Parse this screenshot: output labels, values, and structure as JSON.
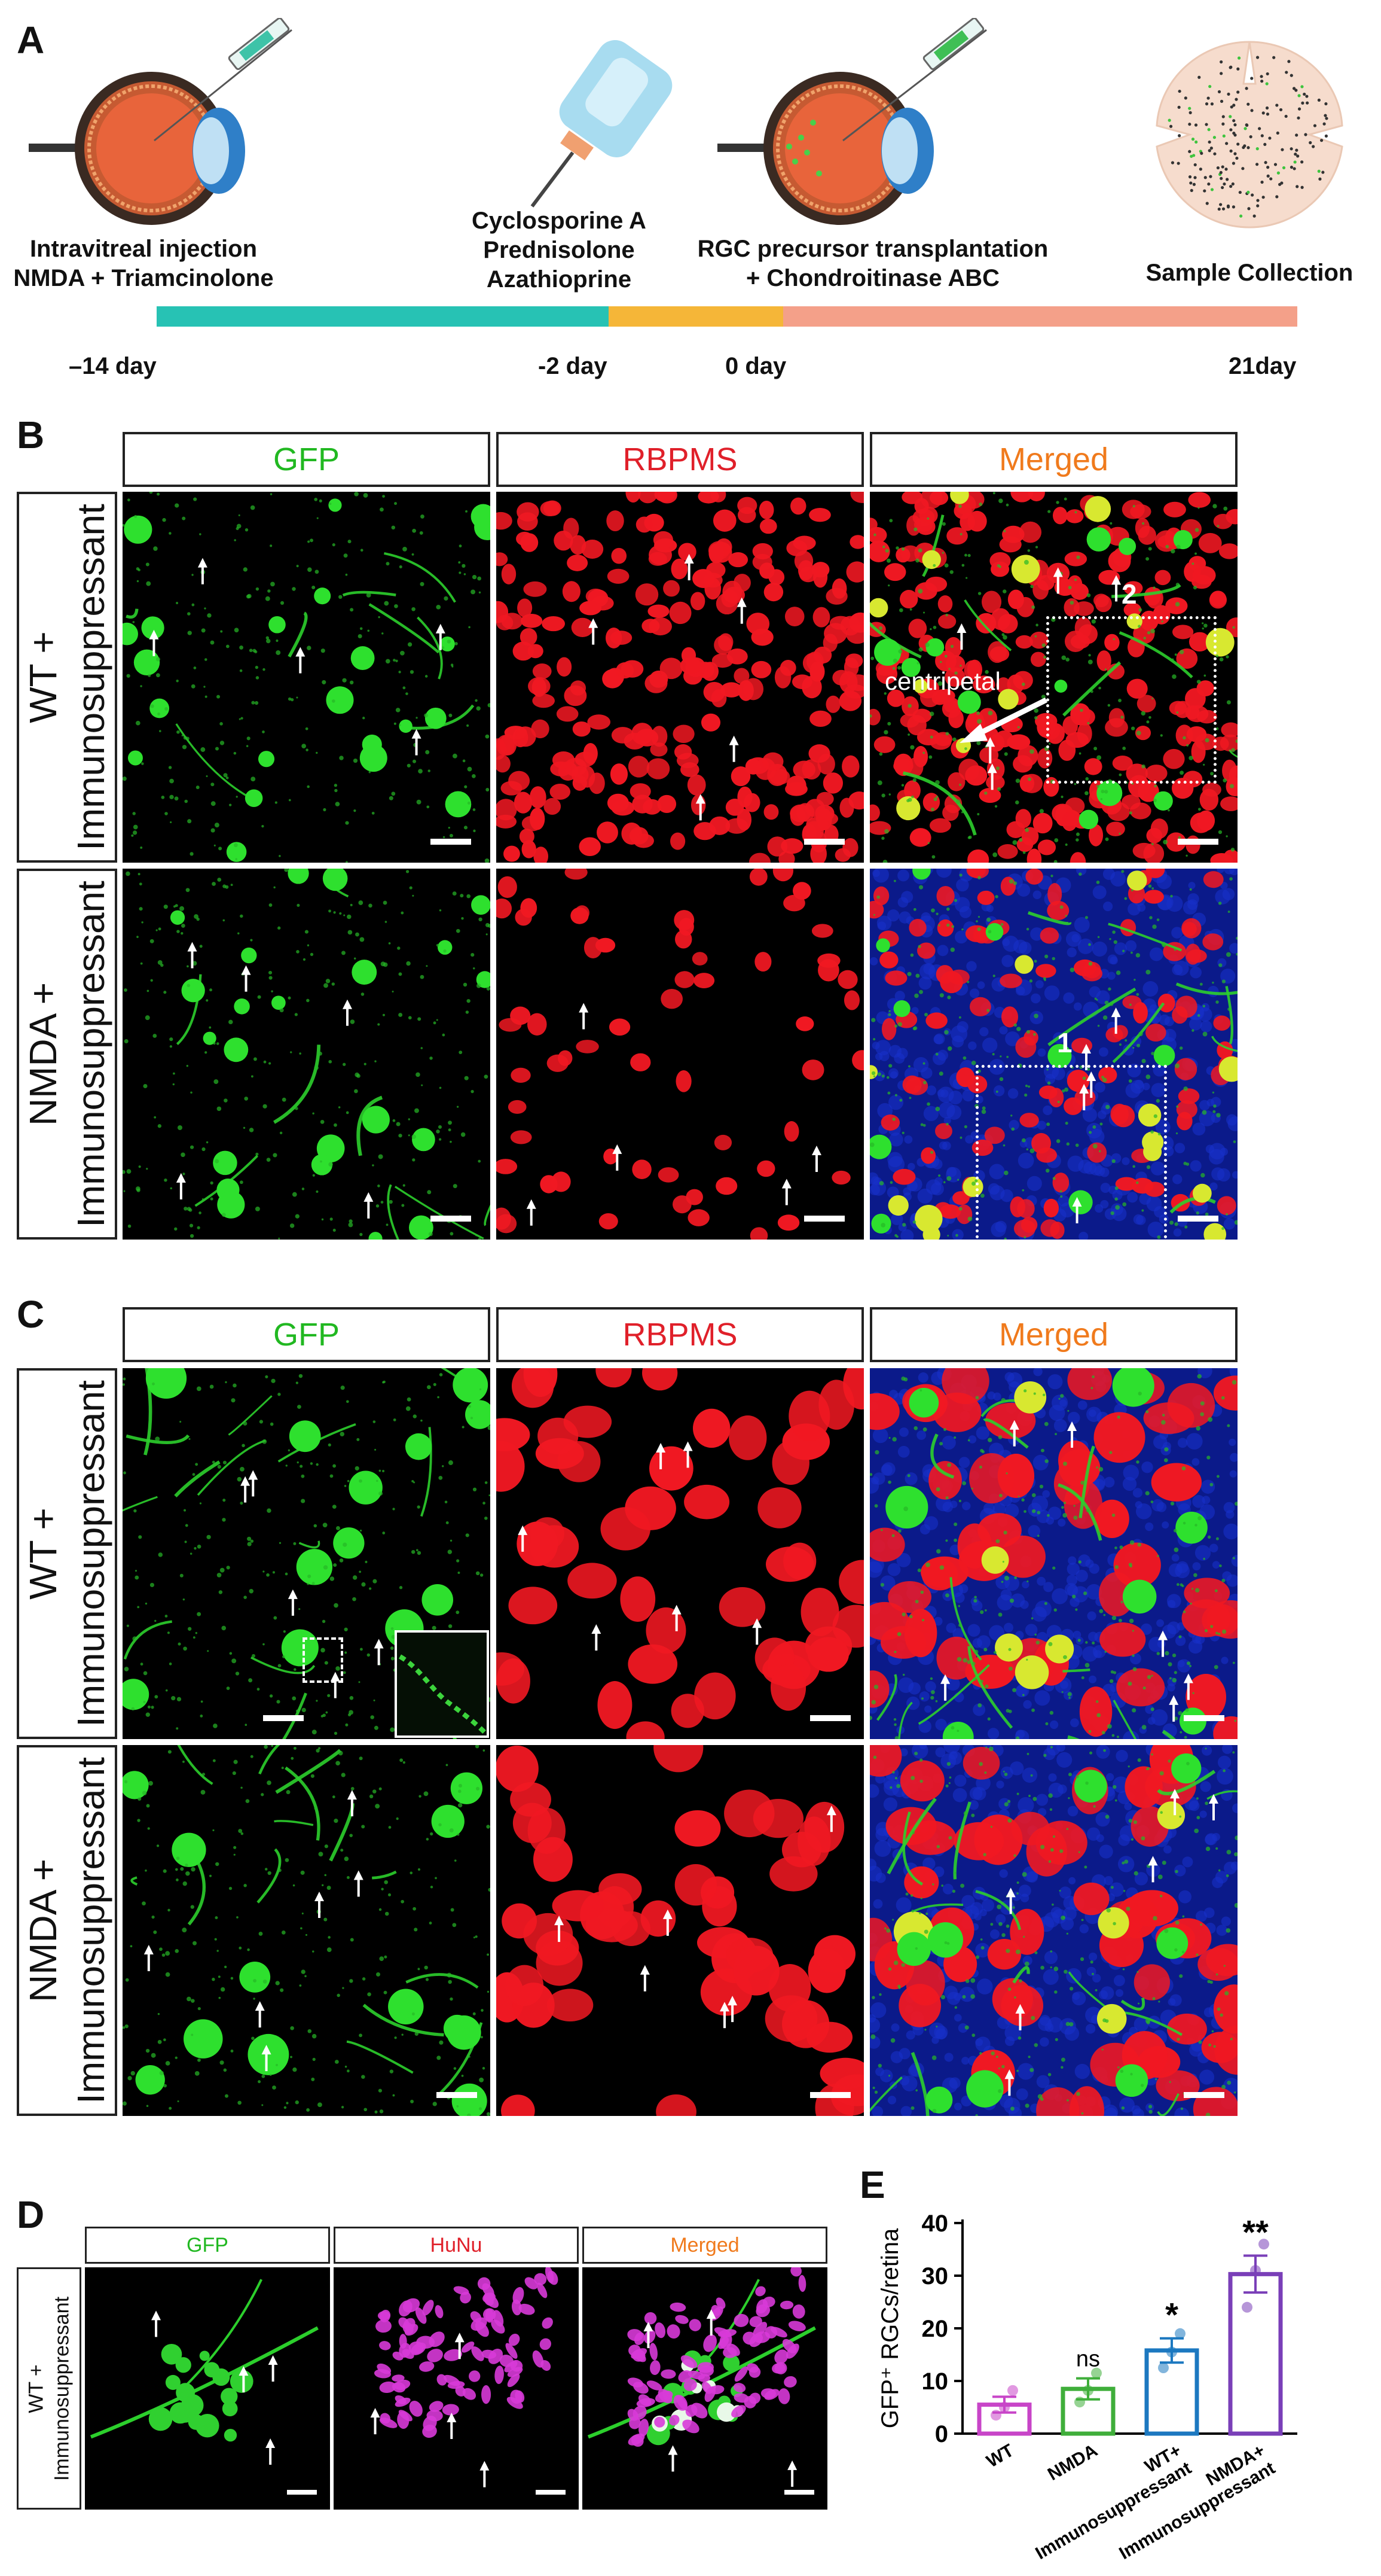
{
  "panel_a": {
    "label": "A",
    "step1": {
      "line1": "Intravitreal injection",
      "line2": "NMDA + Triamcinolone"
    },
    "step2": {
      "line1": "Cyclosporine A",
      "line2": "Prednisolone",
      "line3": "Azathioprine"
    },
    "step3": {
      "line1": "RGC precursor transplantation",
      "line2": "+ Chondroitinase ABC"
    },
    "step4": {
      "line1": "Sample Collection"
    },
    "timeline": {
      "t1": "–14 day",
      "t2": "-2 day",
      "t3": "0 day",
      "t4": "21day"
    },
    "colors": {
      "seg1": "#27c2b4",
      "seg2": "#f5b638",
      "seg3": "#f4a089"
    }
  },
  "panel_b": {
    "label": "B",
    "col_gfp": "GFP",
    "col_rbpms": "RBPMS",
    "col_merged": "Merged",
    "row1": {
      "line1": "WT +",
      "line2": "Immunosuppressant"
    },
    "row2": {
      "line1": "NMDA +",
      "line2": "Immunosuppressant"
    },
    "centripetal": "centripetal",
    "box2": "2",
    "box1": "1"
  },
  "panel_c": {
    "label": "C",
    "col_gfp": "GFP",
    "col_rbpms": "RBPMS",
    "col_merged": "Merged",
    "row1": {
      "line1": "WT +",
      "line2": "Immunosuppressant"
    },
    "row2": {
      "line1": "NMDA +",
      "line2": "Immunosuppressant"
    }
  },
  "panel_d": {
    "label": "D",
    "col_gfp": "GFP",
    "col_hunu": "HuNu",
    "col_merged": "Merged",
    "row1": {
      "line1": "WT +",
      "line2": "Immunosuppressant"
    }
  },
  "panel_e": {
    "label": "E",
    "chart_data": {
      "type": "bar",
      "categories": [
        "WT",
        "NMDA",
        "WT+\nImmunosuppressant",
        "NMDA+\nImmunosuppressant"
      ],
      "category_labels": [
        "WT",
        "NMDA",
        "WT+",
        "Immunosuppressant",
        "NMDA+",
        "Immunosuppressant"
      ],
      "values": [
        5.5,
        8.5,
        15.8,
        30.3
      ],
      "errors": [
        1.5,
        2.0,
        2.3,
        3.5
      ],
      "points": [
        [
          3.5,
          5.0,
          8.2
        ],
        [
          6.0,
          8.2,
          11.5
        ],
        [
          12.5,
          15.5,
          19.0
        ],
        [
          24.0,
          31.0,
          36.0
        ]
      ],
      "significance": [
        "",
        "ns",
        "*",
        "**"
      ],
      "bar_colors": [
        "#c845c8",
        "#3fae3a",
        "#1c78c0",
        "#7a3fb8"
      ],
      "ylabel": "GFP⁺ RGCs/retina",
      "ylim": [
        0,
        40
      ],
      "yticks": [
        "0",
        "10",
        "20",
        "30",
        "40"
      ]
    }
  }
}
